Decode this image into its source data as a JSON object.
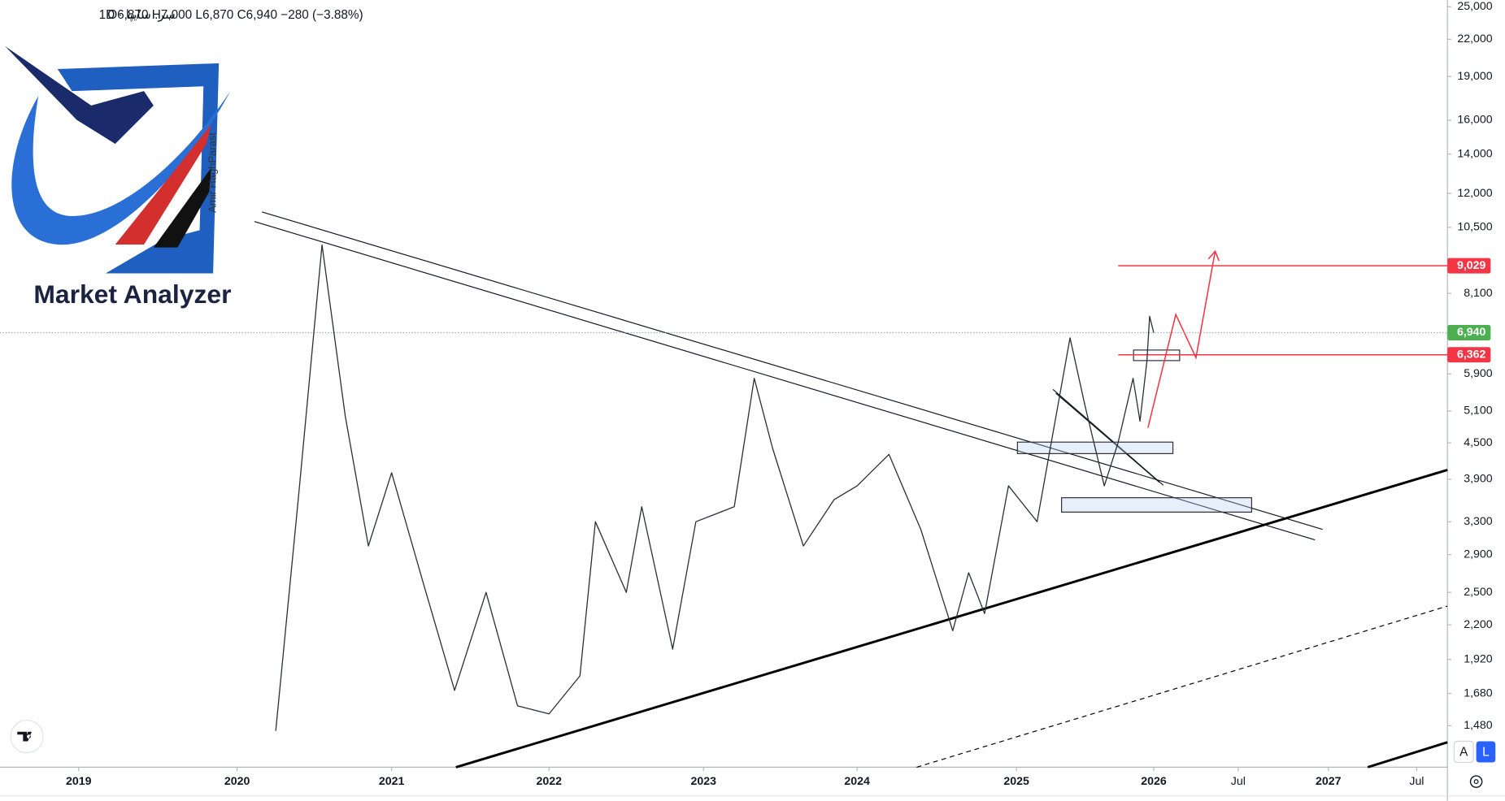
{
  "chart_data": {
    "type": "line",
    "symbol": "سر. سایپا · 1D",
    "ohlc_label": "O6,870 H7,000 L6,870 C6,940 −280 (−3.88%)",
    "watermark": "Market Analyzer",
    "author": "Amir HaghParast",
    "scale_buttons": [
      "A",
      "L"
    ],
    "log_scale": true,
    "grid": false,
    "color": "#2a2e39",
    "x": [
      2020.25,
      2020.4,
      2020.55,
      2020.7,
      2020.85,
      2021.0,
      2021.2,
      2021.4,
      2021.6,
      2021.8,
      2022.0,
      2022.2,
      2022.3,
      2022.5,
      2022.6,
      2022.8,
      2022.95,
      2023.2,
      2023.33,
      2023.45,
      2023.65,
      2023.85,
      2024.0,
      2024.2,
      2024.4,
      2024.6,
      2024.7,
      2024.8,
      2024.95,
      2025.15,
      2025.39,
      2025.5,
      2025.64,
      2025.74,
      2025.85,
      2025.9,
      2025.95,
      2025.97,
      2026.0
    ],
    "values": [
      1450,
      3700,
      9800,
      5000,
      3000,
      4000,
      2600,
      1700,
      2500,
      1600,
      1550,
      1800,
      3300,
      2500,
      3500,
      2000,
      3300,
      3500,
      5800,
      4400,
      3000,
      3600,
      3800,
      4300,
      3200,
      2150,
      2700,
      2300,
      3800,
      3300,
      6800,
      5200,
      3800,
      4500,
      5800,
      4900,
      6200,
      7400,
      6940
    ],
    "xlim": [
      2018.5,
      2027.66
    ],
    "xticks": [
      2019,
      2020,
      2021,
      2022,
      2023,
      2024,
      2025,
      2026,
      {
        "value": 2026.5,
        "label": "Jul"
      },
      2027,
      {
        "value": 2027.5,
        "label": "Jul"
      }
    ],
    "ylim": [
      1257,
      25670
    ],
    "yticks": [
      {
        "value": 25000,
        "label": "25,000"
      },
      {
        "value": 22000,
        "label": "22,000"
      },
      {
        "value": 19000,
        "label": "19,000"
      },
      {
        "value": 16000,
        "label": "16,000"
      },
      {
        "value": 14000,
        "label": "14,000"
      },
      {
        "value": 12000,
        "label": "12,000"
      },
      {
        "value": 10500,
        "label": "10,500"
      },
      {
        "value": 8100,
        "label": "8,100"
      },
      {
        "value": 5900,
        "label": "5,900"
      },
      {
        "value": 5100,
        "label": "5,100"
      },
      {
        "value": 4500,
        "label": "4,500"
      },
      {
        "value": 3900,
        "label": "3,900"
      },
      {
        "value": 3300,
        "label": "3,300"
      },
      {
        "value": 2900,
        "label": "2,900"
      },
      {
        "value": 2500,
        "label": "2,500"
      },
      {
        "value": 2200,
        "label": "2,200"
      },
      {
        "value": 1920,
        "label": "1,920"
      },
      {
        "value": 1680,
        "label": "1,680"
      },
      {
        "value": 1480,
        "label": "1,480"
      }
    ],
    "price_levels": [
      {
        "value": 9029,
        "label": "9,029",
        "color": "#f23645"
      },
      {
        "value": 6940,
        "label": "6,940",
        "color": "#4caf50"
      },
      {
        "value": 6362,
        "label": "6,362",
        "color": "#f23645"
      }
    ]
  }
}
